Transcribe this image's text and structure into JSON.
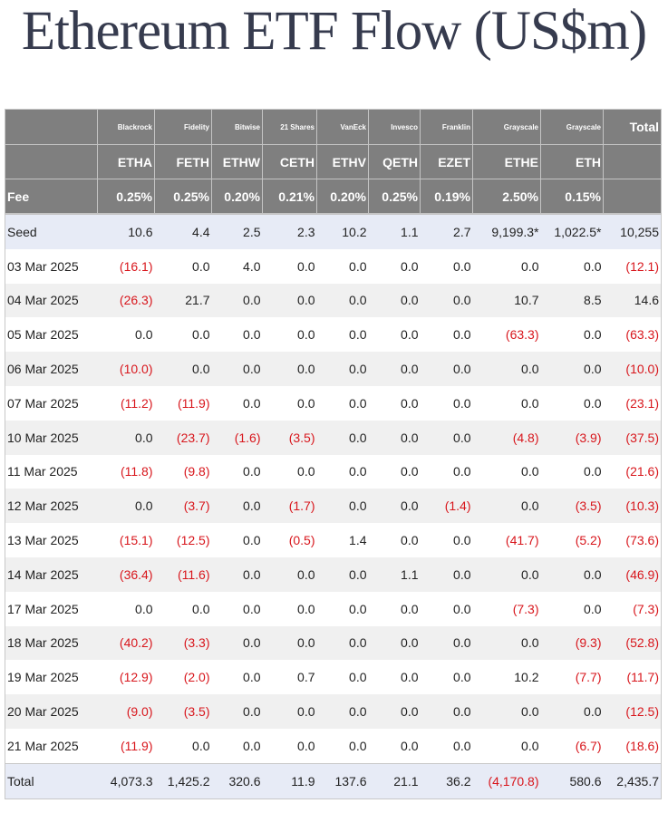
{
  "title": "Ethereum ETF Flow (US$m)",
  "colors": {
    "header_bg": "#7f7f7f",
    "negative": "#d8161c",
    "seed_bg": "#e7ebf6",
    "shade_bg": "#f0f0f0",
    "title": "#363b4e"
  },
  "table": {
    "issuers": [
      "Blackrock",
      "Fidelity",
      "Bitwise",
      "21 Shares",
      "VanEck",
      "Invesco",
      "Franklin",
      "Grayscale",
      "Grayscale"
    ],
    "total_label": "Total",
    "tickers": [
      "ETHA",
      "FETH",
      "ETHW",
      "CETH",
      "ETHV",
      "QETH",
      "EZET",
      "ETHE",
      "ETH"
    ],
    "fee_label": "Fee",
    "fees": [
      "0.25%",
      "0.25%",
      "0.20%",
      "0.21%",
      "0.20%",
      "0.25%",
      "0.19%",
      "2.50%",
      "0.15%"
    ],
    "rows": [
      {
        "label": "Seed",
        "values": [
          "10.6",
          "4.4",
          "2.5",
          "2.3",
          "10.2",
          "1.1",
          "2.7",
          "9,199.3*",
          "1,022.5*",
          "10,255"
        ]
      },
      {
        "label": "03 Mar 2025",
        "values": [
          "(16.1)",
          "0.0",
          "4.0",
          "0.0",
          "0.0",
          "0.0",
          "0.0",
          "0.0",
          "0.0",
          "(12.1)"
        ]
      },
      {
        "label": "04 Mar 2025",
        "values": [
          "(26.3)",
          "21.7",
          "0.0",
          "0.0",
          "0.0",
          "0.0",
          "0.0",
          "10.7",
          "8.5",
          "14.6"
        ]
      },
      {
        "label": "05 Mar 2025",
        "values": [
          "0.0",
          "0.0",
          "0.0",
          "0.0",
          "0.0",
          "0.0",
          "0.0",
          "(63.3)",
          "0.0",
          "(63.3)"
        ]
      },
      {
        "label": "06 Mar 2025",
        "values": [
          "(10.0)",
          "0.0",
          "0.0",
          "0.0",
          "0.0",
          "0.0",
          "0.0",
          "0.0",
          "0.0",
          "(10.0)"
        ]
      },
      {
        "label": "07 Mar 2025",
        "values": [
          "(11.2)",
          "(11.9)",
          "0.0",
          "0.0",
          "0.0",
          "0.0",
          "0.0",
          "0.0",
          "0.0",
          "(23.1)"
        ]
      },
      {
        "label": "10 Mar 2025",
        "values": [
          "0.0",
          "(23.7)",
          "(1.6)",
          "(3.5)",
          "0.0",
          "0.0",
          "0.0",
          "(4.8)",
          "(3.9)",
          "(37.5)"
        ]
      },
      {
        "label": "11 Mar 2025",
        "values": [
          "(11.8)",
          "(9.8)",
          "0.0",
          "0.0",
          "0.0",
          "0.0",
          "0.0",
          "0.0",
          "0.0",
          "(21.6)"
        ]
      },
      {
        "label": "12 Mar 2025",
        "values": [
          "0.0",
          "(3.7)",
          "0.0",
          "(1.7)",
          "0.0",
          "0.0",
          "(1.4)",
          "0.0",
          "(3.5)",
          "(10.3)"
        ]
      },
      {
        "label": "13 Mar 2025",
        "values": [
          "(15.1)",
          "(12.5)",
          "0.0",
          "(0.5)",
          "1.4",
          "0.0",
          "0.0",
          "(41.7)",
          "(5.2)",
          "(73.6)"
        ]
      },
      {
        "label": "14 Mar 2025",
        "values": [
          "(36.4)",
          "(11.6)",
          "0.0",
          "0.0",
          "0.0",
          "1.1",
          "0.0",
          "0.0",
          "0.0",
          "(46.9)"
        ]
      },
      {
        "label": "17 Mar 2025",
        "values": [
          "0.0",
          "0.0",
          "0.0",
          "0.0",
          "0.0",
          "0.0",
          "0.0",
          "(7.3)",
          "0.0",
          "(7.3)"
        ]
      },
      {
        "label": "18 Mar 2025",
        "values": [
          "(40.2)",
          "(3.3)",
          "0.0",
          "0.0",
          "0.0",
          "0.0",
          "0.0",
          "0.0",
          "(9.3)",
          "(52.8)"
        ]
      },
      {
        "label": "19 Mar 2025",
        "values": [
          "(12.9)",
          "(2.0)",
          "0.0",
          "0.7",
          "0.0",
          "0.0",
          "0.0",
          "10.2",
          "(7.7)",
          "(11.7)"
        ]
      },
      {
        "label": "20 Mar 2025",
        "values": [
          "(9.0)",
          "(3.5)",
          "0.0",
          "0.0",
          "0.0",
          "0.0",
          "0.0",
          "0.0",
          "0.0",
          "(12.5)"
        ]
      },
      {
        "label": "21 Mar 2025",
        "values": [
          "(11.9)",
          "0.0",
          "0.0",
          "0.0",
          "0.0",
          "0.0",
          "0.0",
          "0.0",
          "(6.7)",
          "(18.6)"
        ]
      },
      {
        "label": "Total",
        "values": [
          "4,073.3",
          "1,425.2",
          "320.6",
          "11.9",
          "137.6",
          "21.1",
          "36.2",
          "(4,170.8)",
          "580.6",
          "2,435.7"
        ]
      }
    ]
  }
}
